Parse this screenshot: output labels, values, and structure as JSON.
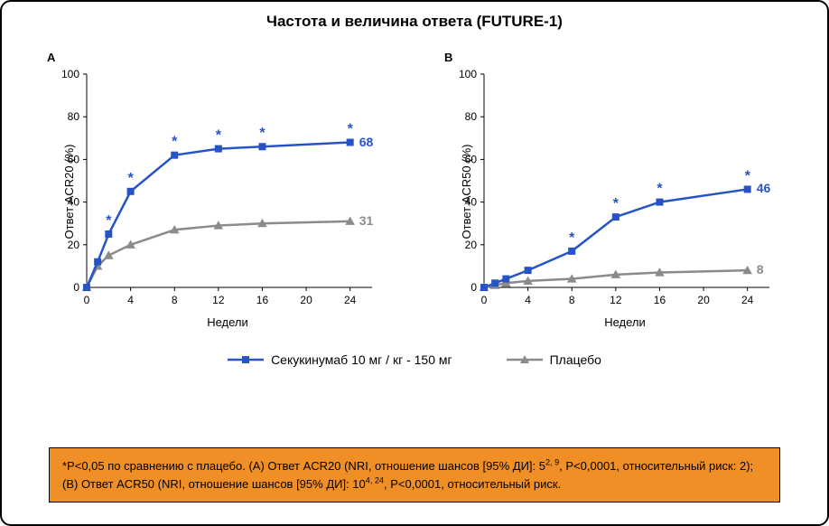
{
  "title": "Частота и величина ответа (FUTURE-1)",
  "xlabel": "Недели",
  "panels": {
    "A": {
      "title": "A",
      "ylabel": "Ответ ACR20 (%)",
      "xlim": [
        0,
        26
      ],
      "ylim": [
        0,
        100
      ],
      "yticks": [
        0,
        20,
        40,
        60,
        80,
        100
      ],
      "xticks": [
        0,
        4,
        8,
        12,
        16,
        20,
        24
      ],
      "series": {
        "drug": {
          "x": [
            0,
            1,
            2,
            4,
            8,
            12,
            16,
            24
          ],
          "y": [
            0,
            12,
            25,
            45,
            62,
            65,
            66,
            68
          ],
          "star": [
            false,
            false,
            true,
            true,
            true,
            true,
            true,
            true
          ],
          "end_label": "68"
        },
        "placebo": {
          "x": [
            0,
            1,
            2,
            4,
            8,
            12,
            16,
            24
          ],
          "y": [
            0,
            10,
            15,
            20,
            27,
            29,
            30,
            31
          ],
          "star": [
            false,
            false,
            false,
            false,
            false,
            false,
            false,
            false
          ],
          "end_label": "31"
        }
      }
    },
    "B": {
      "title": "B",
      "ylabel": "Ответ ACR50 (%)",
      "xlim": [
        0,
        26
      ],
      "ylim": [
        0,
        100
      ],
      "yticks": [
        0,
        20,
        40,
        60,
        80,
        100
      ],
      "xticks": [
        0,
        4,
        8,
        12,
        16,
        20,
        24
      ],
      "series": {
        "drug": {
          "x": [
            0,
            1,
            2,
            4,
            8,
            12,
            16,
            24
          ],
          "y": [
            0,
            2,
            4,
            8,
            17,
            33,
            40,
            46
          ],
          "star": [
            false,
            false,
            false,
            false,
            true,
            true,
            true,
            true
          ],
          "end_label": "46"
        },
        "placebo": {
          "x": [
            0,
            1,
            2,
            4,
            8,
            12,
            16,
            24
          ],
          "y": [
            0,
            1,
            2,
            3,
            4,
            6,
            7,
            8
          ],
          "star": [
            false,
            false,
            false,
            false,
            false,
            false,
            false,
            false
          ],
          "end_label": "8"
        }
      }
    }
  },
  "legend": {
    "drug": "Секукинумаб 10 мг / кг - 150 мг",
    "placebo": "Плацебо"
  },
  "colors": {
    "drug": "#2653c6",
    "placebo": "#8b8b8b",
    "footnote_bg": "#ef8f26",
    "axis": "#000000",
    "background": "#ffffff"
  },
  "style": {
    "line_width_axis": 1,
    "line_width_series": 2.5,
    "marker_size_square": 8,
    "marker_size_triangle": 9,
    "font_title": 17,
    "font_axis": 13,
    "font_tick": 12,
    "font_legend": 14,
    "font_footnote": 13
  },
  "footnote_html": "*P&lt;0,05 по сравнению с плацебо. (A) Ответ ACR20 (NRI, отношение шансов [95% ДИ]: 5<sup>2, 9</sup>, P&lt;0,0001, относительный риск: 2); (B) Ответ ACR50 (NRI, отношение шансов [95% ДИ]: 10<sup>4, 24</sup>, P&lt;0,0001, относительный риск."
}
